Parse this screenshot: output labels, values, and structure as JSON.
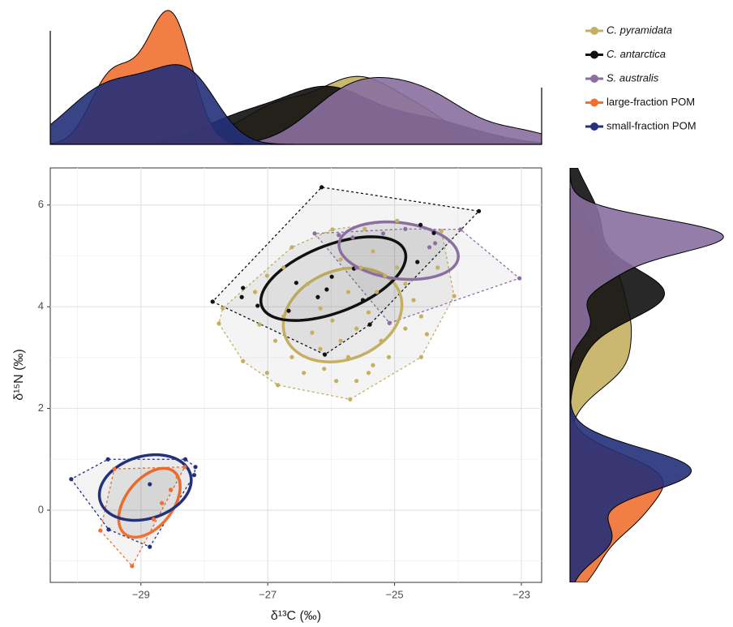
{
  "chart_data": {
    "type": "scatter",
    "xlabel": "δ¹³C (‰)",
    "ylabel": "δ¹⁵N (‰)",
    "xlim": [
      -30.43,
      -22.68
    ],
    "ylim": [
      -1.42,
      6.73
    ],
    "xticks": [
      {
        "value": -29,
        "label": "−29"
      },
      {
        "value": -27,
        "label": "−27"
      },
      {
        "value": -25,
        "label": "−25"
      },
      {
        "value": -23,
        "label": "−23"
      }
    ],
    "yticks": [
      0,
      2,
      4,
      6
    ],
    "xminor": [
      -30,
      -28,
      -26,
      -24
    ],
    "yminor": [
      -1,
      1,
      3,
      5
    ],
    "grid": true,
    "legend": "top-right",
    "series": [
      {
        "name": "C. pyramidata",
        "italic": true,
        "color": "#c4b060",
        "x": [
          -27.77,
          -27.71,
          -27.39,
          -26.84,
          -25.7,
          -24.58,
          -24.49,
          -24.06,
          -24.26,
          -24.96,
          -25.47,
          -25.98,
          -26.62,
          -26.75,
          -27.01,
          -27.2,
          -27.13,
          -26.88,
          -26.62,
          -26.43,
          -26.3,
          -26.17,
          -25.98,
          -25.85,
          -25.73,
          -25.6,
          -25.41,
          -25.28,
          -25.15,
          -24.96,
          -24.83,
          -24.7,
          -24.58,
          -25.21,
          -25.09,
          -25.41,
          -26.11,
          -26.37,
          -25.73,
          -25.53,
          -25.34,
          -25.85,
          -24.83,
          -26.75,
          -26.17,
          -25.92,
          -25.6,
          -25.34,
          -27.01,
          -24.32
        ],
        "y": [
          3.67,
          3.97,
          2.93,
          2.46,
          2.18,
          3.01,
          3.46,
          4.21,
          5.49,
          5.69,
          5.53,
          5.52,
          5.17,
          4.77,
          4.61,
          4.29,
          3.65,
          3.33,
          3.01,
          2.7,
          3.49,
          3.97,
          3.73,
          3.33,
          3.01,
          3.57,
          3.89,
          4.29,
          4.61,
          4.77,
          4.45,
          4.13,
          3.81,
          3.33,
          3.01,
          2.7,
          2.78,
          4.45,
          4.29,
          4.77,
          5.09,
          4.93,
          3.57,
          3.81,
          3.17,
          2.54,
          2.54,
          2.85,
          2.7,
          4.77
        ]
      },
      {
        "name": "C. antarctica",
        "italic": true,
        "color": "#111111",
        "x": [
          -27.87,
          -26.15,
          -23.67,
          -26.1,
          -27.41,
          -27.39,
          -27.16,
          -26.67,
          -26.55,
          -26.21,
          -26.07,
          -25.64,
          -25.5,
          -25.39,
          -24.59,
          -24.64,
          -24.38,
          -25.99
        ],
        "y": [
          4.1,
          6.35,
          5.88,
          3.06,
          4.19,
          4.37,
          4.02,
          3.92,
          4.47,
          4.19,
          4.34,
          4.75,
          4.13,
          3.65,
          5.61,
          4.88,
          5.45,
          4.59
        ]
      },
      {
        "name": "S. australis",
        "italic": true,
        "color": "#8a6fa0",
        "x": [
          -26.26,
          -25.88,
          -25.66,
          -25.18,
          -23.96,
          -23.03,
          -25.08,
          -24.45,
          -25.6,
          -24.83,
          -24.36
        ],
        "y": [
          5.44,
          5.41,
          5.36,
          5.44,
          5.52,
          4.56,
          3.68,
          5.17,
          4.77,
          5.53,
          5.25
        ]
      },
      {
        "name": "large-fraction POM",
        "italic": false,
        "color": "#f07030",
        "x": [
          -29.64,
          -29.42,
          -29.14,
          -28.42,
          -28.53,
          -28.31,
          -28.8,
          -28.67
        ],
        "y": [
          -0.4,
          0.81,
          -1.1,
          0.65,
          0.4,
          0.85,
          -0.18,
          0.14
        ]
      },
      {
        "name": "small-fraction POM",
        "italic": false,
        "color": "#23307a",
        "x": [
          -30.1,
          -29.52,
          -28.86,
          -28.3,
          -28.14,
          -28.16,
          -29.51,
          -28.86
        ],
        "y": [
          0.61,
          1.0,
          0.51,
          1.0,
          0.85,
          0.69,
          -0.38,
          -0.72
        ]
      }
    ]
  }
}
